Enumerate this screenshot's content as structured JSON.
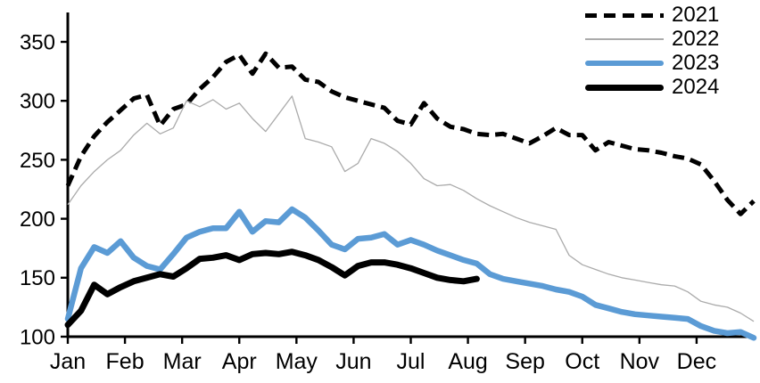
{
  "chart_data": {
    "type": "line",
    "title": "",
    "x_axis": {
      "tick_labels": [
        "Jan",
        "Feb",
        "Mar",
        "Apr",
        "May",
        "Jun",
        "Jul",
        "Aug",
        "Sep",
        "Oct",
        "Nov",
        "Dec"
      ],
      "unit": "week-of-year",
      "points_span": "weekly points from Jan 1 to Dec 31"
    },
    "y_axis": {
      "min": 100,
      "max": 350,
      "tick_step": 50,
      "tick_labels": [
        "100",
        "150",
        "200",
        "250",
        "300",
        "350"
      ]
    },
    "grid": false,
    "legend": {
      "position": "top-right",
      "entries": [
        "2021",
        "2022",
        "2023",
        "2024"
      ]
    },
    "series": [
      {
        "name": "2021",
        "style": "dashed",
        "color": "#000000",
        "width": 5,
        "values": [
          228,
          253,
          270,
          282,
          292,
          302,
          305,
          279,
          293,
          297,
          310,
          320,
          333,
          339,
          323,
          340,
          328,
          329,
          318,
          316,
          308,
          303,
          300,
          297,
          294,
          283,
          280,
          298,
          285,
          278,
          276,
          272,
          271,
          272,
          268,
          264,
          270,
          277,
          271,
          271,
          258,
          265,
          262,
          259,
          258,
          256,
          253,
          251,
          246,
          232,
          216,
          204,
          215
        ]
      },
      {
        "name": "2022",
        "style": "solid",
        "color": "#ABABAB",
        "width": 1.3,
        "values": [
          212,
          228,
          240,
          250,
          258,
          271,
          281,
          272,
          277,
          300,
          295,
          301,
          293,
          298,
          285,
          274,
          289,
          304,
          268,
          265,
          261,
          240,
          247,
          268,
          264,
          257,
          247,
          234,
          228,
          229,
          224,
          217,
          211,
          206,
          201,
          197,
          194,
          191,
          169,
          161,
          157,
          153,
          150,
          148,
          146,
          144,
          143,
          138,
          130,
          127,
          125,
          120,
          113
        ]
      },
      {
        "name": "2023",
        "style": "solid",
        "color": "#5B9BD5",
        "width": 6.5,
        "values": [
          115,
          158,
          176,
          171,
          181,
          167,
          160,
          157,
          170,
          184,
          189,
          192,
          192,
          206,
          189,
          198,
          197,
          208,
          201,
          190,
          178,
          174,
          183,
          184,
          187,
          178,
          182,
          178,
          173,
          169,
          165,
          162,
          153,
          149,
          147,
          145,
          143,
          140,
          138,
          134,
          127,
          124,
          121,
          119,
          118,
          117,
          116,
          115,
          109,
          105,
          103,
          104,
          99
        ]
      },
      {
        "name": "2024",
        "style": "solid",
        "color": "#000000",
        "width": 7,
        "values": [
          110,
          122,
          144,
          136,
          142,
          147,
          150,
          153,
          151,
          158,
          166,
          167,
          169,
          165,
          170,
          171,
          170,
          172,
          169,
          165,
          159,
          152,
          160,
          163,
          163,
          161,
          158,
          154,
          150,
          148,
          147,
          149
        ]
      }
    ]
  },
  "colors": {
    "background": "#ffffff",
    "axis": "#000000",
    "text": "#000000"
  }
}
